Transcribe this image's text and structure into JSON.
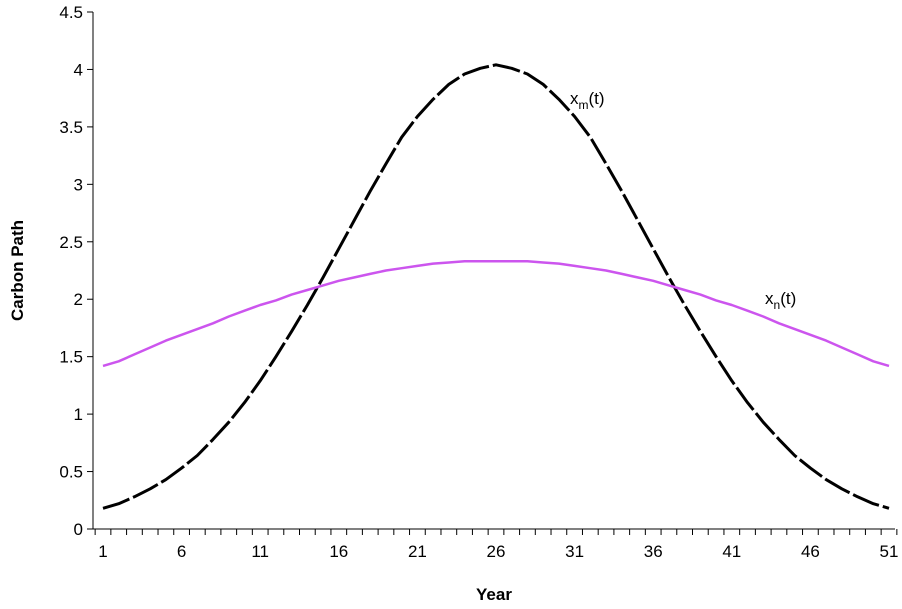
{
  "chart_data": {
    "type": "line",
    "title": "",
    "xlabel": "Year",
    "ylabel": "Carbon Path",
    "xlim": [
      1,
      51
    ],
    "ylim": [
      0,
      4.5
    ],
    "x_ticks": [
      1,
      6,
      11,
      16,
      21,
      26,
      31,
      36,
      41,
      46,
      51
    ],
    "y_ticks": [
      "0",
      "0.5",
      "1",
      "1.5",
      "2",
      "2.5",
      "3",
      "3.5",
      "4",
      "4.5"
    ],
    "grid": false,
    "legend": "none",
    "series": [
      {
        "label_base": "x",
        "label_sub": "m",
        "label_suffix": "(t)",
        "color": "#000000",
        "style": "dashed",
        "x": [
          1,
          2,
          3,
          4,
          5,
          6,
          7,
          8,
          9,
          10,
          11,
          12,
          13,
          14,
          15,
          16,
          17,
          18,
          19,
          20,
          21,
          22,
          23,
          24,
          25,
          26,
          27,
          28,
          29,
          30,
          31,
          32,
          33,
          34,
          35,
          36,
          37,
          38,
          39,
          40,
          41,
          42,
          43,
          44,
          45,
          46,
          47,
          48,
          49,
          50,
          51
        ],
        "y": [
          0.18,
          0.22,
          0.28,
          0.35,
          0.43,
          0.53,
          0.64,
          0.78,
          0.93,
          1.1,
          1.29,
          1.5,
          1.72,
          1.95,
          2.19,
          2.44,
          2.69,
          2.94,
          3.18,
          3.41,
          3.59,
          3.74,
          3.87,
          3.96,
          4.01,
          4.04,
          4.01,
          3.96,
          3.87,
          3.74,
          3.59,
          3.41,
          3.18,
          2.94,
          2.69,
          2.44,
          2.19,
          1.95,
          1.72,
          1.5,
          1.29,
          1.1,
          0.93,
          0.78,
          0.64,
          0.53,
          0.43,
          0.35,
          0.28,
          0.22,
          0.18
        ]
      },
      {
        "label_base": "x",
        "label_sub": "n",
        "label_suffix": "(t)",
        "color": "#cc55ee",
        "style": "solid",
        "x": [
          1,
          2,
          3,
          4,
          5,
          6,
          7,
          8,
          9,
          10,
          11,
          12,
          13,
          14,
          15,
          16,
          17,
          18,
          19,
          20,
          21,
          22,
          23,
          24,
          25,
          26,
          27,
          28,
          29,
          30,
          31,
          32,
          33,
          34,
          35,
          36,
          37,
          38,
          39,
          40,
          41,
          42,
          43,
          44,
          45,
          46,
          47,
          48,
          49,
          50,
          51
        ],
        "y": [
          1.42,
          1.46,
          1.52,
          1.58,
          1.64,
          1.69,
          1.74,
          1.79,
          1.85,
          1.9,
          1.95,
          1.99,
          2.04,
          2.08,
          2.12,
          2.16,
          2.19,
          2.22,
          2.25,
          2.27,
          2.29,
          2.31,
          2.32,
          2.33,
          2.33,
          2.33,
          2.33,
          2.33,
          2.32,
          2.31,
          2.29,
          2.27,
          2.25,
          2.22,
          2.19,
          2.16,
          2.12,
          2.08,
          2.04,
          1.99,
          1.95,
          1.9,
          1.85,
          1.79,
          1.74,
          1.69,
          1.64,
          1.58,
          1.52,
          1.46,
          1.42
        ]
      }
    ]
  }
}
